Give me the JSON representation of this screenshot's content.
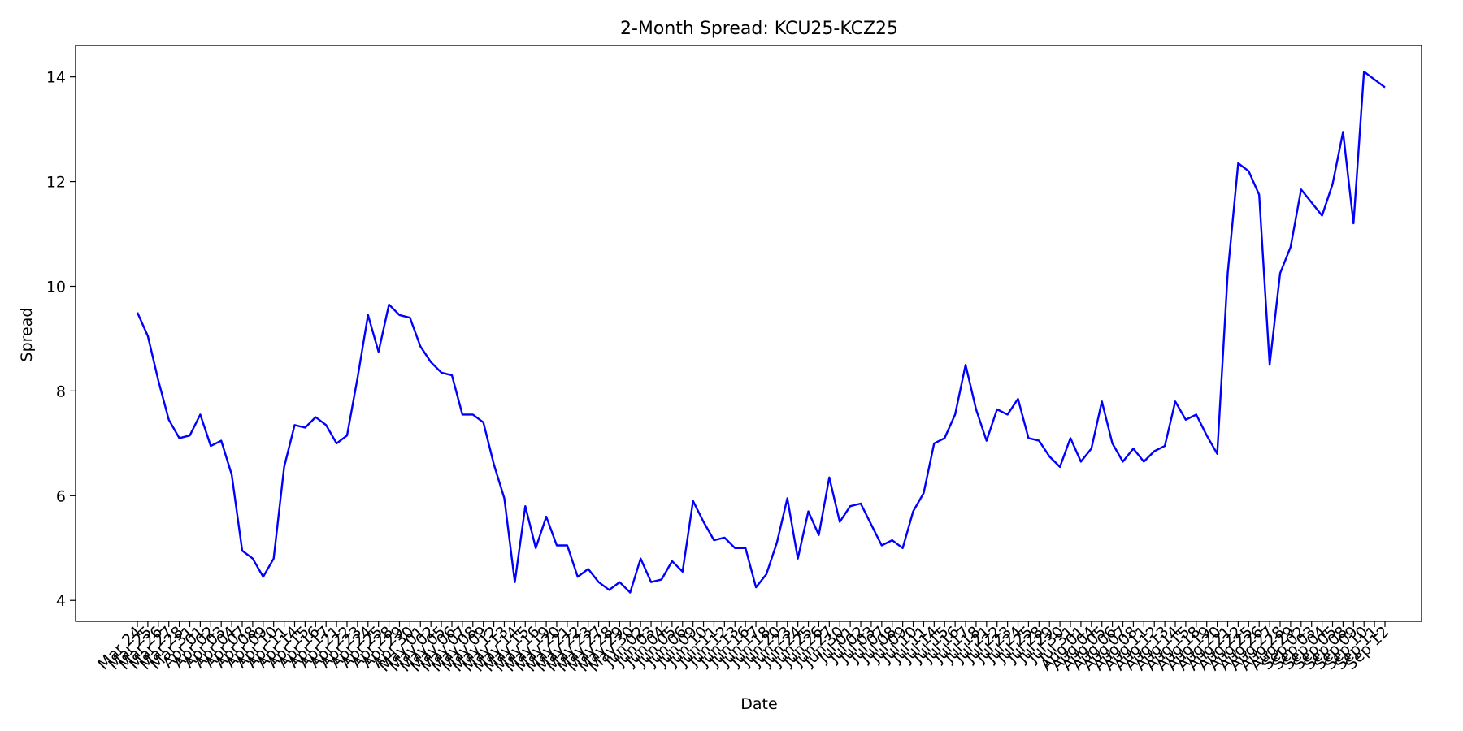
{
  "chart_data": {
    "type": "line",
    "title": "2-Month Spread: KCU25-KCZ25",
    "xlabel": "Date",
    "ylabel": "Spread",
    "ylim": [
      3.6,
      14.6
    ],
    "yticks": [
      4,
      6,
      8,
      10,
      12,
      14
    ],
    "grid": false,
    "x": [
      "Mar 24",
      "Mar 25",
      "Mar 26",
      "Mar 27",
      "Mar 28",
      "Mar 31",
      "Apr 01",
      "Apr 02",
      "Apr 03",
      "Apr 04",
      "Apr 07",
      "Apr 08",
      "Apr 09",
      "Apr 10",
      "Apr 11",
      "Apr 14",
      "Apr 15",
      "Apr 16",
      "Apr 17",
      "Apr 21",
      "Apr 22",
      "Apr 23",
      "Apr 24",
      "Apr 25",
      "Apr 28",
      "Apr 29",
      "Apr 30",
      "May 01",
      "May 02",
      "May 05",
      "May 06",
      "May 07",
      "May 08",
      "May 09",
      "May 12",
      "May 13",
      "May 14",
      "May 15",
      "May 16",
      "May 19",
      "May 20",
      "May 21",
      "May 22",
      "May 23",
      "May 27",
      "May 28",
      "May 29",
      "May 30",
      "Jun 02",
      "Jun 03",
      "Jun 04",
      "Jun 05",
      "Jun 06",
      "Jun 09",
      "Jun 10",
      "Jun 11",
      "Jun 12",
      "Jun 13",
      "Jun 16",
      "Jun 17",
      "Jun 18",
      "Jun 20",
      "Jun 23",
      "Jun 24",
      "Jun 25",
      "Jun 26",
      "Jun 27",
      "Jun 30",
      "Jul 01",
      "Jul 02",
      "Jul 03",
      "Jul 07",
      "Jul 08",
      "Jul 09",
      "Jul 10",
      "Jul 11",
      "Jul 14",
      "Jul 15",
      "Jul 16",
      "Jul 17",
      "Jul 18",
      "Jul 21",
      "Jul 22",
      "Jul 23",
      "Jul 24",
      "Jul 25",
      "Jul 28",
      "Jul 29",
      "Jul 30",
      "Jul 31",
      "Aug 01",
      "Aug 04",
      "Aug 05",
      "Aug 06",
      "Aug 07",
      "Aug 08",
      "Aug 11",
      "Aug 12",
      "Aug 13",
      "Aug 14",
      "Aug 15",
      "Aug 18",
      "Aug 19",
      "Aug 20",
      "Aug 21",
      "Aug 22",
      "Aug 25",
      "Aug 26",
      "Aug 27",
      "Aug 28",
      "Aug 29",
      "Sep 02",
      "Sep 03",
      "Sep 04",
      "Sep 05",
      "Sep 08",
      "Sep 09",
      "Sep 10",
      "Sep 11",
      "Sep 12"
    ],
    "series": [
      {
        "color": "#0000ff",
        "values": [
          9.5,
          9.05,
          8.2,
          7.45,
          7.1,
          7.15,
          7.55,
          6.95,
          7.05,
          6.4,
          4.95,
          4.8,
          4.45,
          4.8,
          6.55,
          7.35,
          7.3,
          7.5,
          7.35,
          7.0,
          7.15,
          8.25,
          9.45,
          8.75,
          9.65,
          9.45,
          9.4,
          8.85,
          8.55,
          8.35,
          8.3,
          7.55,
          7.55,
          7.4,
          6.6,
          5.95,
          4.35,
          5.8,
          5.0,
          5.6,
          5.05,
          5.05,
          4.45,
          4.6,
          4.35,
          4.2,
          4.35,
          4.15,
          4.8,
          4.35,
          4.4,
          4.75,
          4.55,
          5.9,
          5.5,
          5.15,
          5.2,
          5.0,
          5.0,
          4.25,
          4.5,
          5.1,
          5.95,
          4.8,
          5.7,
          5.25,
          6.35,
          5.5,
          5.8,
          5.85,
          5.45,
          5.05,
          5.15,
          5.0,
          5.7,
          6.05,
          7.0,
          7.1,
          7.55,
          8.5,
          7.65,
          7.05,
          7.65,
          7.55,
          7.85,
          7.1,
          7.05,
          6.75,
          6.55,
          7.1,
          6.65,
          6.9,
          7.8,
          7.0,
          6.65,
          6.9,
          6.65,
          6.85,
          6.95,
          7.8,
          7.45,
          7.55,
          7.15,
          6.8,
          10.25,
          12.35,
          12.2,
          11.75,
          8.5,
          10.25,
          10.75,
          11.85,
          11.6,
          11.35,
          11.95,
          12.95,
          11.2,
          14.1,
          13.95,
          13.8
        ]
      }
    ]
  }
}
